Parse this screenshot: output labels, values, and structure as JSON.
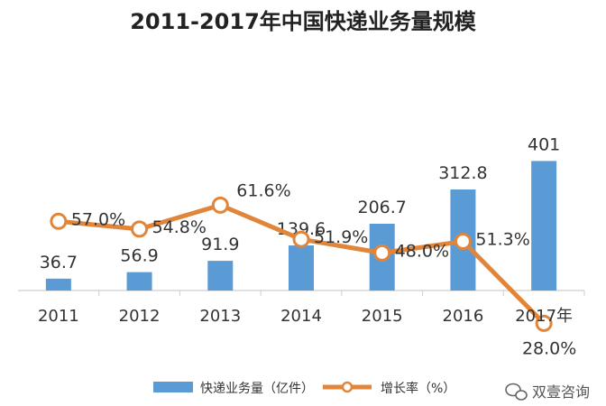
{
  "chart_data": {
    "type": "bar+line",
    "title": "2011-2017年中国快递业务量规模",
    "categories": [
      "2011",
      "2012",
      "2013",
      "2014",
      "2015",
      "2016",
      "2017年"
    ],
    "series": [
      {
        "name": "快递业务量（亿件）",
        "type": "bar",
        "color": "#5b9bd5",
        "values": [
          36.7,
          56.9,
          91.9,
          139.6,
          206.7,
          312.8,
          401
        ],
        "labels": [
          "36.7",
          "56.9",
          "91.9",
          "139.6",
          "206.7",
          "312.8",
          "401"
        ]
      },
      {
        "name": "增长率（%）",
        "type": "line",
        "color": "#e0853a",
        "values": [
          57.0,
          54.8,
          61.6,
          51.9,
          48.0,
          51.3,
          28.0
        ],
        "labels": [
          "57.0%",
          "54.8%",
          "61.6%",
          "51.9%",
          "48.0%",
          "51.3%",
          "28.0%"
        ]
      }
    ],
    "legend_position": "bottom",
    "grid": false
  },
  "watermark": {
    "icon": "wechat-icon",
    "text": "双壹咨询"
  }
}
